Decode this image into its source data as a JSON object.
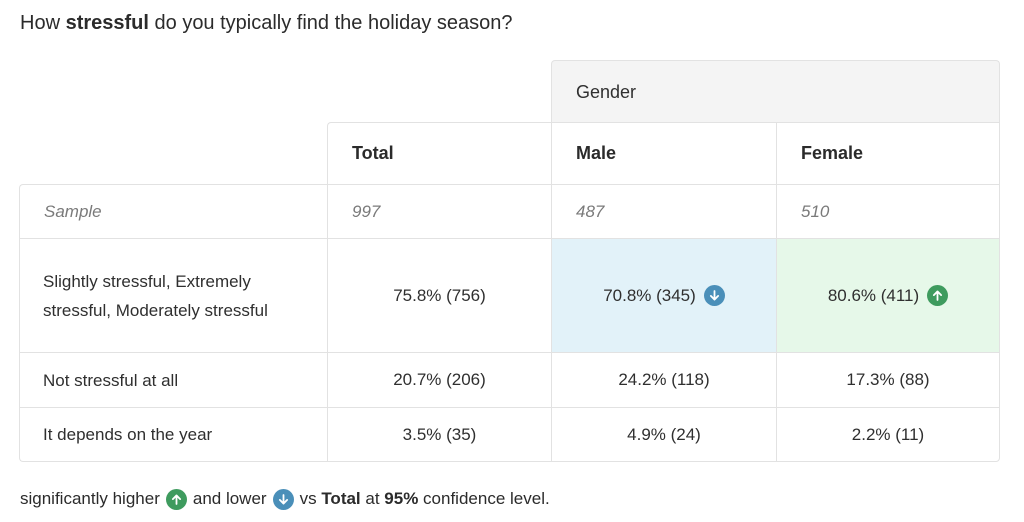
{
  "question": {
    "prefix": "How ",
    "emphasis": "stressful",
    "suffix": " do you typically find the holiday season?"
  },
  "table": {
    "group_header": "Gender",
    "columns": [
      "Total",
      "Male",
      "Female"
    ],
    "sample": {
      "label": "Sample",
      "values": [
        "997",
        "487",
        "510"
      ]
    },
    "rows": [
      {
        "label": "Slightly stressful, Extremely stressful, Moderately stressful",
        "values": [
          "75.8% (756)",
          "70.8% (345)",
          "80.6% (411)"
        ],
        "flags": [
          "none",
          "lower",
          "higher"
        ]
      },
      {
        "label": "Not stressful at all",
        "values": [
          "20.7% (206)",
          "24.2% (118)",
          "17.3% (88)"
        ],
        "flags": [
          "none",
          "none",
          "none"
        ]
      },
      {
        "label": "It depends on the year",
        "values": [
          "3.5% (35)",
          "4.9% (24)",
          "2.2% (11)"
        ],
        "flags": [
          "none",
          "none",
          "none"
        ]
      }
    ]
  },
  "legend": {
    "part1": "significantly higher",
    "part2": "and lower",
    "part3": "vs ",
    "total_word": "Total",
    "part4": " at ",
    "confidence": "95%",
    "part5": " confidence level."
  },
  "colors": {
    "higher_badge": "#3e9b5e",
    "lower_badge": "#4a8fb9",
    "higher_cell": "#e6f8e9",
    "lower_cell": "#e2f2f9",
    "group_header_bg": "#f4f4f4"
  },
  "icons": {
    "higher": "arrow-up-icon",
    "lower": "arrow-down-icon"
  }
}
